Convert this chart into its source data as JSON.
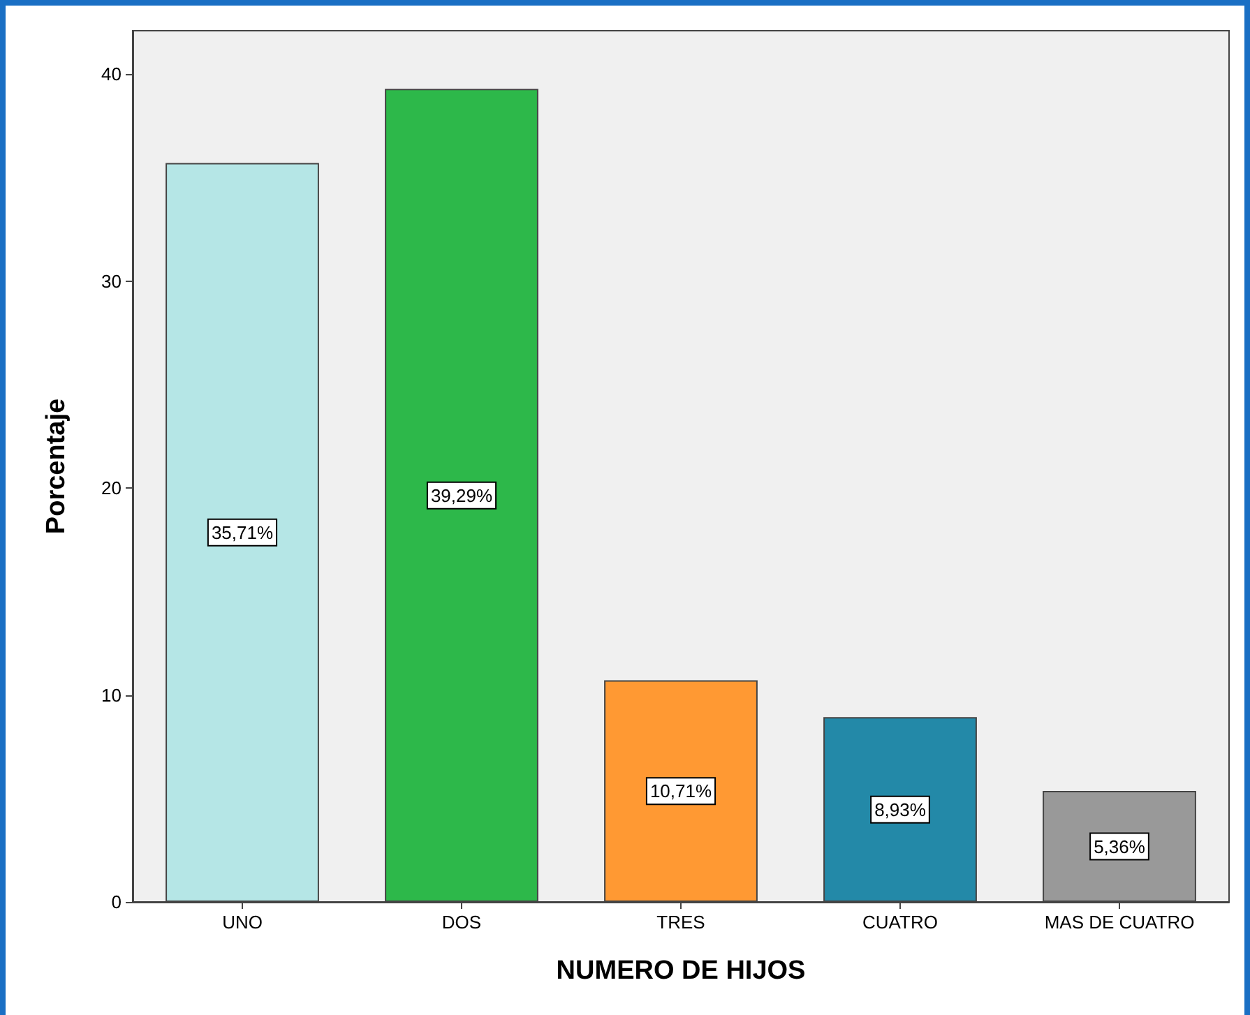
{
  "chart_data": {
    "type": "bar",
    "xlabel": "NUMERO DE HIJOS",
    "ylabel": "Porcentaje",
    "categories": [
      "UNO",
      "DOS",
      "TRES",
      "CUATRO",
      "MAS DE CUATRO"
    ],
    "values": [
      35.71,
      39.29,
      10.71,
      8.93,
      5.36
    ],
    "value_labels": [
      "35,71%",
      "39,29%",
      "10,71%",
      "8,93%",
      "5,36%"
    ],
    "colors": [
      "#b5e6e6",
      "#2db84a",
      "#ff9933",
      "#2389a8",
      "#999999"
    ],
    "ylim": [
      0,
      42.1
    ],
    "yticks": [
      0,
      10,
      20,
      30,
      40
    ],
    "grid": false
  }
}
